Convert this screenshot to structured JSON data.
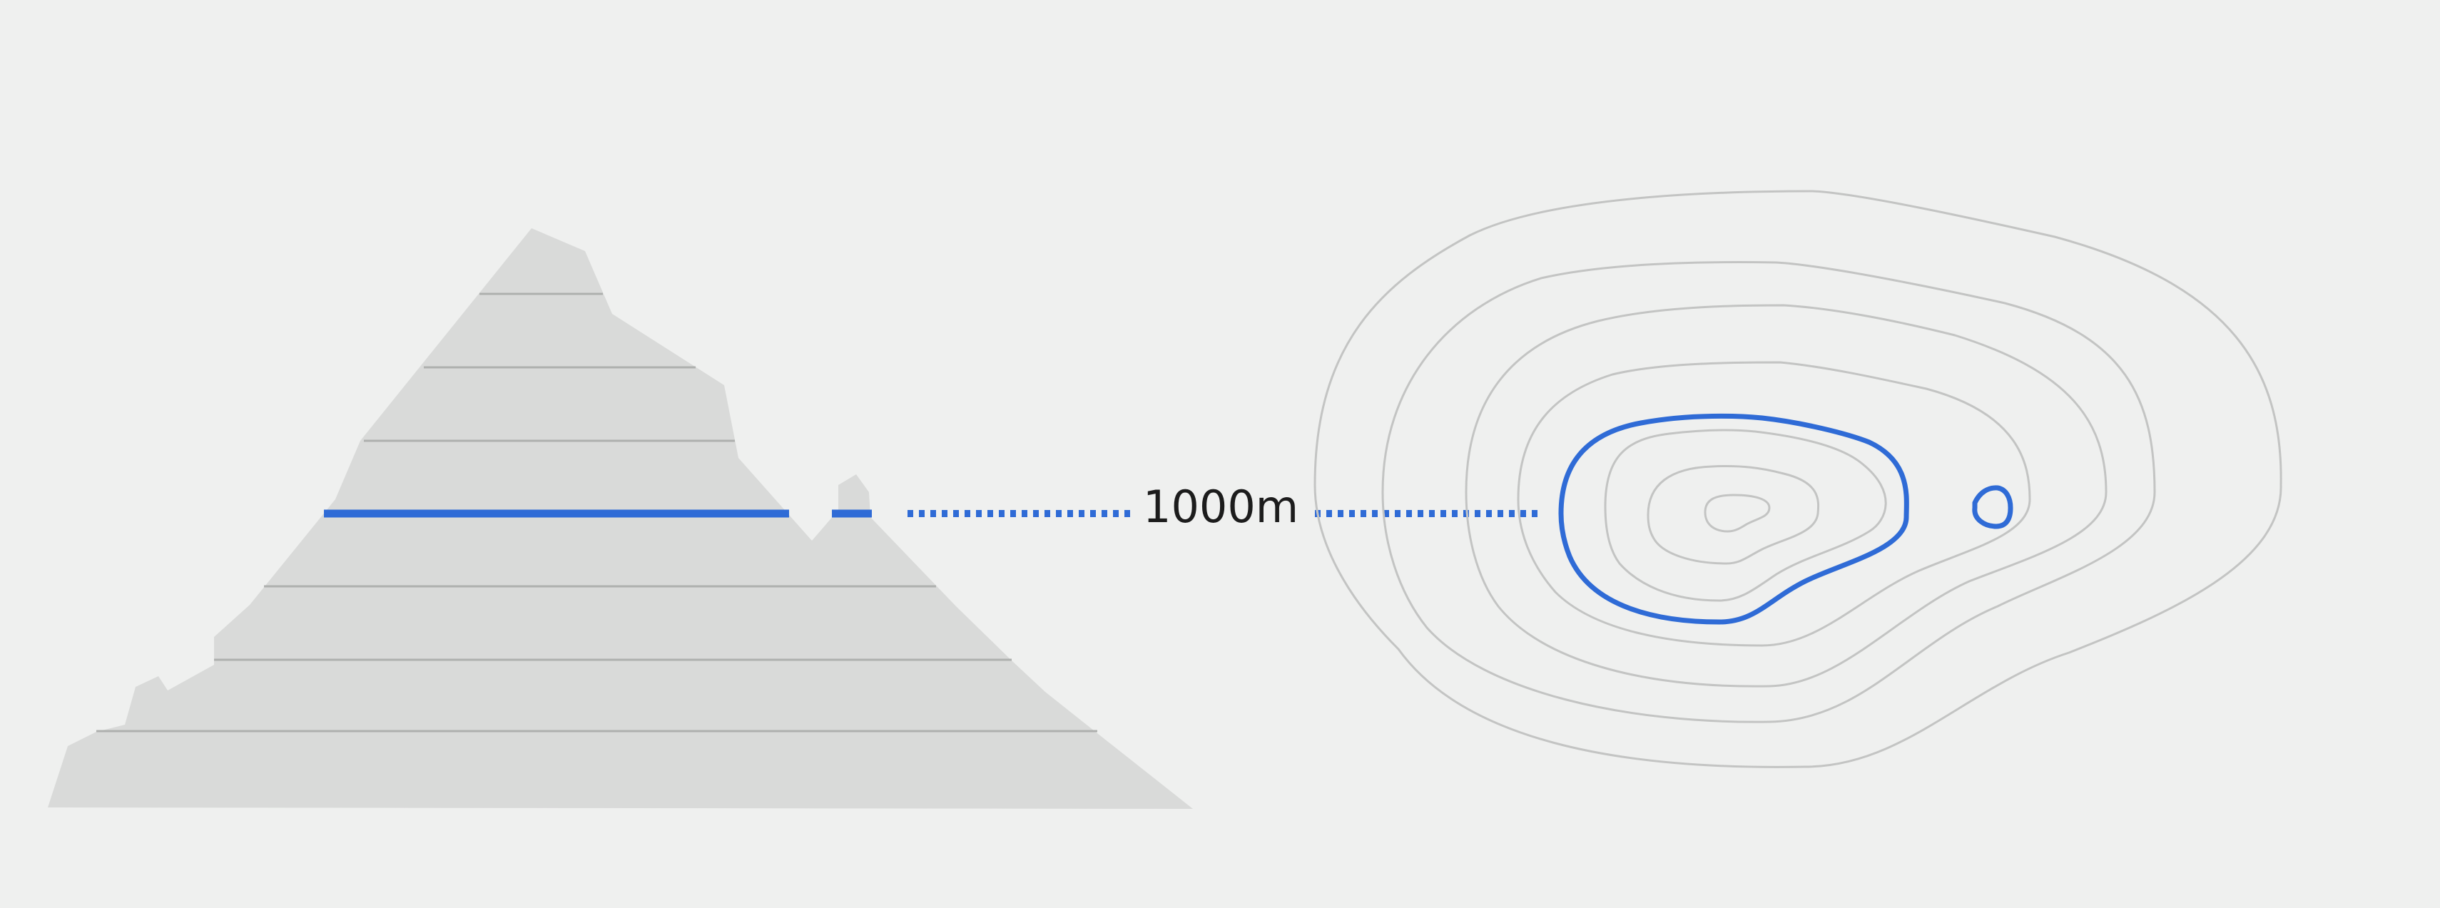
{
  "elevation_label": "1000m",
  "colors": {
    "background": "#eff0ef",
    "mountain_fill": "#d9dad9",
    "slice_line": "#aeb0ae",
    "contour_line": "#c3c4c3",
    "highlight": "#2f6bd6",
    "label_text": "#1c1c1c"
  }
}
